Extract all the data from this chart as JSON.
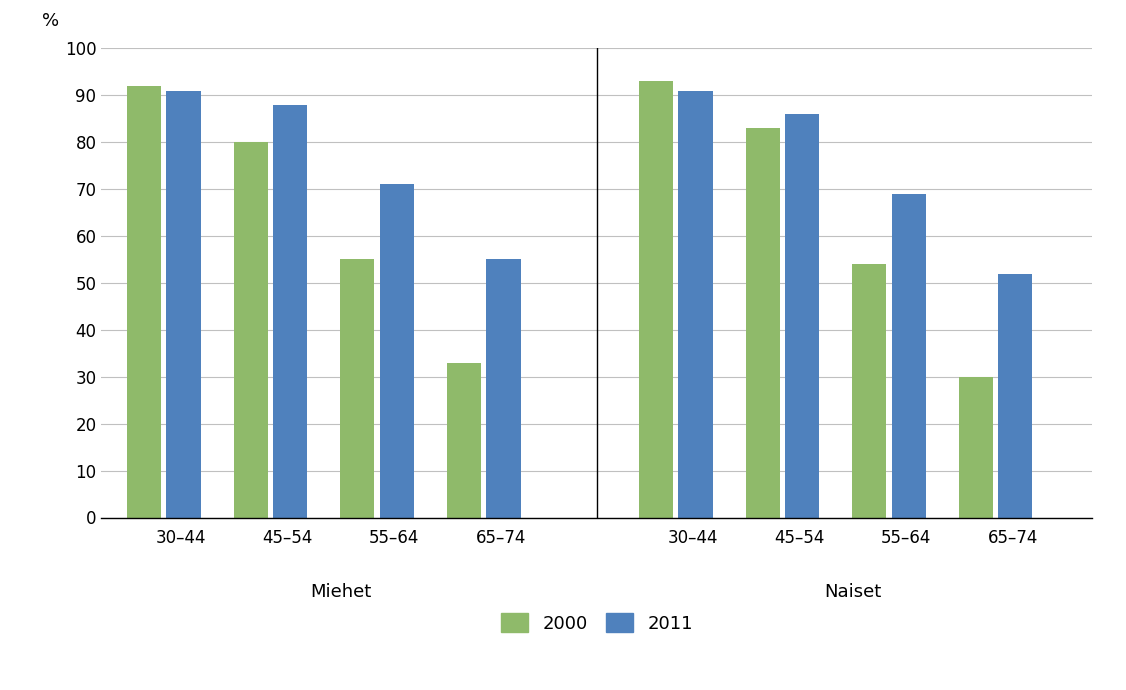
{
  "groups": [
    "Miehet",
    "Naiset"
  ],
  "age_categories": [
    "30–44",
    "45–54",
    "55–64",
    "65–74"
  ],
  "values_2000": {
    "Miehet": [
      92,
      80,
      55,
      33
    ],
    "Naiset": [
      93,
      83,
      54,
      30
    ]
  },
  "values_2011": {
    "Miehet": [
      91,
      88,
      71,
      55
    ],
    "Naiset": [
      91,
      86,
      69,
      52
    ]
  },
  "color_2000": "#8fba6a",
  "color_2011": "#4f81bd",
  "ylabel": "%",
  "ylim": [
    0,
    100
  ],
  "yticks": [
    0,
    10,
    20,
    30,
    40,
    50,
    60,
    70,
    80,
    90,
    100
  ],
  "legend_labels": [
    "2000",
    "2011"
  ],
  "group_labels": [
    "Miehet",
    "Naiset"
  ],
  "background_color": "#ffffff",
  "grid_color": "#c0c0c0"
}
